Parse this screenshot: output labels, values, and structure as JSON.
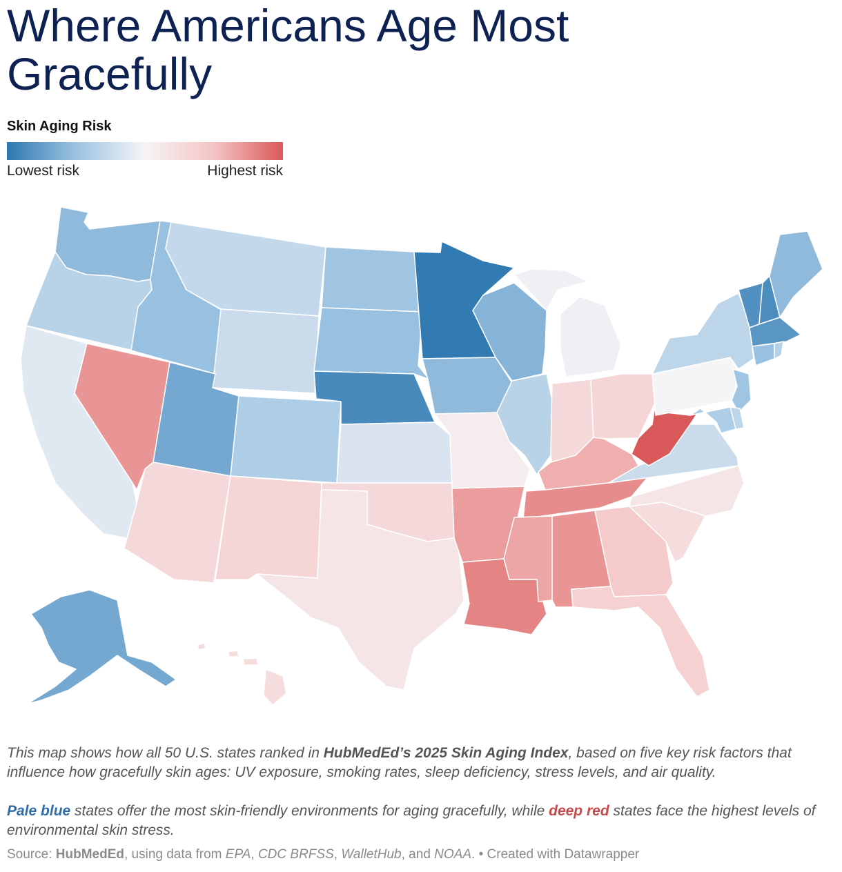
{
  "title": "Where Americans Age Most Gracefully",
  "legend": {
    "title": "Skin Aging Risk",
    "low_label": "Lowest risk",
    "high_label": "Highest risk",
    "scale_colors": [
      "#2e78b0",
      "#9cc3e2",
      "#f5f4f6",
      "#f5c4c4",
      "#d9595a"
    ]
  },
  "map": {
    "type": "choropleth",
    "region": "United States",
    "metric": "Skin Aging Risk (relative, 0 = lowest risk, 1 = highest risk)",
    "states": [
      {
        "name": "Washington",
        "risk": 0.22
      },
      {
        "name": "Oregon",
        "risk": 0.33
      },
      {
        "name": "California",
        "risk": 0.44
      },
      {
        "name": "Nevada",
        "risk": 0.86
      },
      {
        "name": "Idaho",
        "risk": 0.24
      },
      {
        "name": "Montana",
        "risk": 0.36
      },
      {
        "name": "Wyoming",
        "risk": 0.38
      },
      {
        "name": "Utah",
        "risk": 0.16
      },
      {
        "name": "Arizona",
        "risk": 0.64
      },
      {
        "name": "Colorado",
        "risk": 0.3
      },
      {
        "name": "New Mexico",
        "risk": 0.66
      },
      {
        "name": "North Dakota",
        "risk": 0.26
      },
      {
        "name": "South Dakota",
        "risk": 0.24
      },
      {
        "name": "Nebraska",
        "risk": 0.06
      },
      {
        "name": "Kansas",
        "risk": 0.42
      },
      {
        "name": "Oklahoma",
        "risk": 0.64
      },
      {
        "name": "Texas",
        "risk": 0.58
      },
      {
        "name": "Minnesota",
        "risk": 0.01
      },
      {
        "name": "Iowa",
        "risk": 0.22
      },
      {
        "name": "Missouri",
        "risk": 0.54
      },
      {
        "name": "Arkansas",
        "risk": 0.84
      },
      {
        "name": "Louisiana",
        "risk": 0.9
      },
      {
        "name": "Wisconsin",
        "risk": 0.2
      },
      {
        "name": "Illinois",
        "risk": 0.33
      },
      {
        "name": "Michigan",
        "risk": 0.48
      },
      {
        "name": "Indiana",
        "risk": 0.64
      },
      {
        "name": "Ohio",
        "risk": 0.66
      },
      {
        "name": "Kentucky",
        "risk": 0.8
      },
      {
        "name": "Tennessee",
        "risk": 0.88
      },
      {
        "name": "Mississippi",
        "risk": 0.82
      },
      {
        "name": "Alabama",
        "risk": 0.86
      },
      {
        "name": "Georgia",
        "risk": 0.72
      },
      {
        "name": "Florida",
        "risk": 0.68
      },
      {
        "name": "South Carolina",
        "risk": 0.62
      },
      {
        "name": "North Carolina",
        "risk": 0.58
      },
      {
        "name": "Virginia",
        "risk": 0.38
      },
      {
        "name": "West Virginia",
        "risk": 1.0
      },
      {
        "name": "Pennsylvania",
        "risk": 0.5
      },
      {
        "name": "New York",
        "risk": 0.34
      },
      {
        "name": "Vermont",
        "risk": 0.08
      },
      {
        "name": "New Hampshire",
        "risk": 0.07
      },
      {
        "name": "Maine",
        "risk": 0.22
      },
      {
        "name": "Massachusetts",
        "risk": 0.1
      },
      {
        "name": "Connecticut",
        "risk": 0.24
      },
      {
        "name": "Rhode Island",
        "risk": 0.32
      },
      {
        "name": "New Jersey",
        "risk": 0.26
      },
      {
        "name": "Delaware",
        "risk": 0.34
      },
      {
        "name": "Maryland",
        "risk": 0.3
      },
      {
        "name": "Alaska",
        "risk": 0.16
      },
      {
        "name": "Hawaii",
        "risk": 0.62
      }
    ]
  },
  "description": {
    "p1_a": "This map shows how all 50 U.S. states ranked in ",
    "p1_b": "HubMedEd’s 2025 Skin Aging Index",
    "p1_c": ", based on five key risk factors that influence how gracefully skin ages: UV exposure, smoking rates, sleep deficiency, stress levels, and air quality.",
    "p2_a": "Pale blue",
    "p2_b": " states offer the most skin-friendly environments for aging gracefully, while ",
    "p2_c": "deep red",
    "p2_d": " states face the highest levels of environmental skin stress."
  },
  "source": {
    "label": "Source: ",
    "org": "HubMedEd",
    "text1": ", using data from ",
    "d1": "EPA",
    "sep1": ", ",
    "d2": "CDC BRFSS",
    "sep2": ", ",
    "d3": "WalletHub",
    "sep3": ", and ",
    "d4": "NOAA",
    "end": ".",
    "credit": "  • Created with Datawrapper"
  }
}
